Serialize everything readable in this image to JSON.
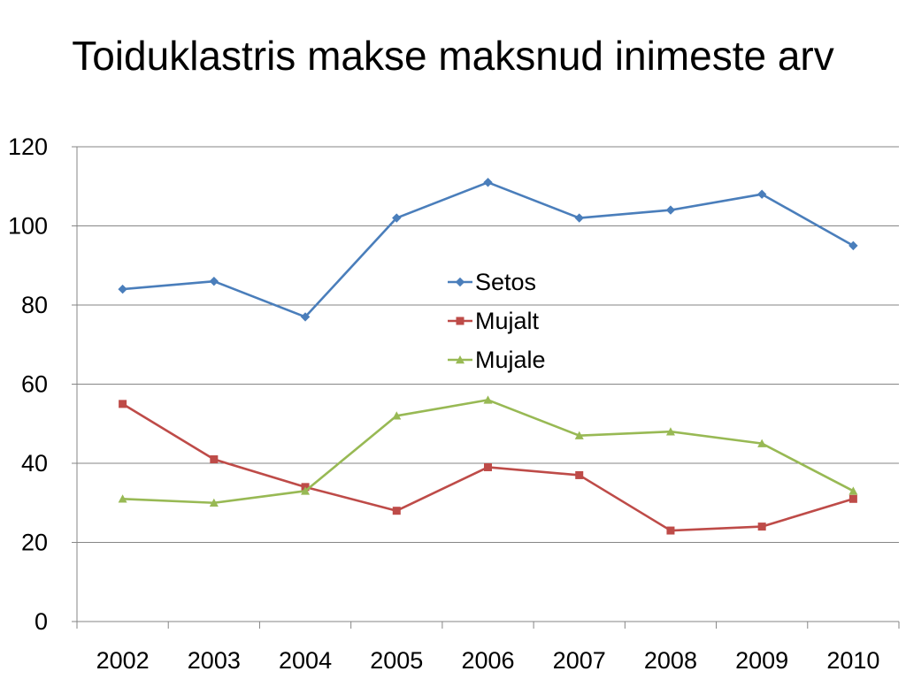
{
  "chart_data": {
    "type": "line",
    "title": "Toiduklastris makse maksnud inimeste arv",
    "xlabel": "",
    "ylabel": "",
    "categories": [
      "2002",
      "2003",
      "2004",
      "2005",
      "2006",
      "2007",
      "2008",
      "2009",
      "2010"
    ],
    "ylim": [
      0,
      120
    ],
    "yticks": [
      0,
      20,
      40,
      60,
      80,
      100,
      120
    ],
    "grid": true,
    "legend_position": "center",
    "series": [
      {
        "name": "Setos",
        "color": "#4A7EBB",
        "marker": "diamond",
        "values": [
          84,
          86,
          77,
          102,
          111,
          102,
          104,
          108,
          95
        ]
      },
      {
        "name": "Mujalt",
        "color": "#BE4B48",
        "marker": "square",
        "values": [
          55,
          41,
          34,
          28,
          39,
          37,
          23,
          24,
          31
        ]
      },
      {
        "name": "Mujale",
        "color": "#98B954",
        "marker": "triangle",
        "values": [
          31,
          30,
          33,
          52,
          56,
          47,
          48,
          45,
          33
        ]
      }
    ]
  }
}
